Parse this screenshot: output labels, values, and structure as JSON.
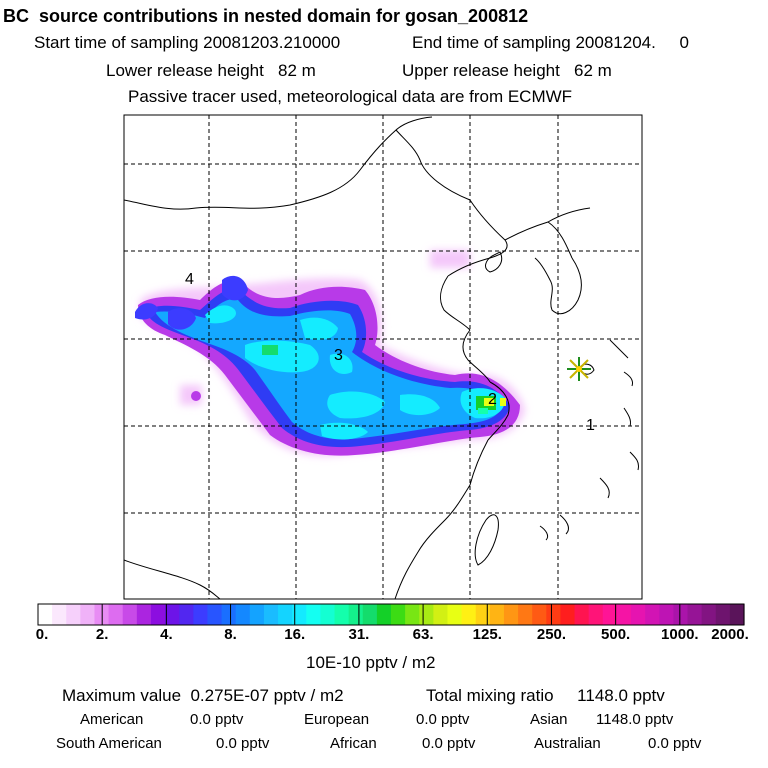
{
  "header": {
    "title": "BC  source contributions in nested domain for gosan_200812",
    "start_label": "Start time of sampling 20081203.210000",
    "end_label": "End time of sampling 20081204.     0",
    "lower_label": "Lower release height   82 m",
    "upper_label": "Upper release height   62 m",
    "tracer_note": "Passive tracer used, meteorological data are from ECMWF"
  },
  "map": {
    "region_labels": [
      "4",
      "3",
      "2",
      "1"
    ],
    "receptor_marker": "gosan-station-star",
    "colors": {
      "coast": "#000000",
      "grid": "#000000"
    }
  },
  "colorbar": {
    "tick_labels": [
      "0.",
      "2.",
      "4.",
      "8.",
      "16.",
      "31.",
      "63.",
      "125.",
      "250.",
      "500.",
      "1000.",
      "2000."
    ],
    "units": "10E-10 pptv / m2",
    "colors": [
      "#ffffff",
      "#fbe8fd",
      "#f6d0fb",
      "#f0b2f8",
      "#e88cf4",
      "#dd6cf0",
      "#c84ae8",
      "#ab25e0",
      "#8c0ee0",
      "#6d14e8",
      "#5227f0",
      "#3c3cff",
      "#2855ff",
      "#1a6fff",
      "#1488ff",
      "#14a3ff",
      "#1abcff",
      "#14d4ff",
      "#14eaff",
      "#14fff2",
      "#14ffd2",
      "#14ffac",
      "#14f08c",
      "#14dc6c",
      "#14d028",
      "#3cdc14",
      "#78e614",
      "#a8eb14",
      "#d2f014",
      "#e8ff14",
      "#fff014",
      "#ffd214",
      "#ffb414",
      "#ff9614",
      "#ff7814",
      "#ff5a14",
      "#ff3c14",
      "#ff1e1e",
      "#ff1450",
      "#ff1478",
      "#ff1496",
      "#f514a5",
      "#e614b0",
      "#d214b4",
      "#be14b4",
      "#aa14aa",
      "#961496",
      "#821482",
      "#6e146e",
      "#5a145a"
    ]
  },
  "footer": {
    "max_label": "Maximum value  0.275E-07 pptv / m2",
    "total_label": "Total mixing ratio     1148.0 pptv",
    "american_label": "American",
    "american_value": "0.0 pptv",
    "european_label": "European",
    "european_value": "0.0 pptv",
    "asian_label": "Asian",
    "asian_value": "1148.0 pptv",
    "southam_label": "South American",
    "southam_value": "0.0 pptv",
    "african_label": "African",
    "african_value": "0.0 pptv",
    "australian_label": "Australian",
    "australian_value": "0.0 pptv"
  }
}
